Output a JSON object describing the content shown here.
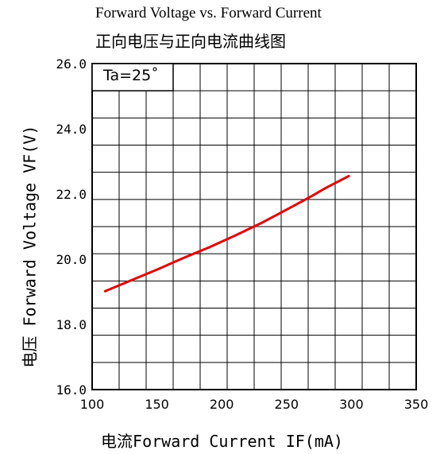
{
  "chart_data": {
    "type": "line",
    "title": "Forward Voltage vs. Forward Current",
    "subtitle": "正向电压与正向电流曲线图",
    "xlabel": "电流Forward Current IF(mA)",
    "ylabel": "电压 Forward Voltage VF(V)",
    "annotation": "Ta=25˚",
    "xlim": [
      100,
      350
    ],
    "ylim": [
      16.0,
      26.0
    ],
    "x_ticks": [
      "100",
      "150",
      "200",
      "250",
      "300",
      "350"
    ],
    "y_ticks": [
      "16.0",
      "18.0",
      "20.0",
      "22.0",
      "24.0",
      "26.0"
    ],
    "grid": true,
    "series": [
      {
        "color": "#e60000",
        "x": [
          110,
          130,
          150,
          170,
          190,
          210,
          230,
          250,
          270,
          280,
          298
        ],
        "y": [
          19.02,
          19.35,
          19.68,
          20.03,
          20.36,
          20.72,
          21.1,
          21.52,
          21.95,
          22.18,
          22.55
        ]
      }
    ]
  }
}
